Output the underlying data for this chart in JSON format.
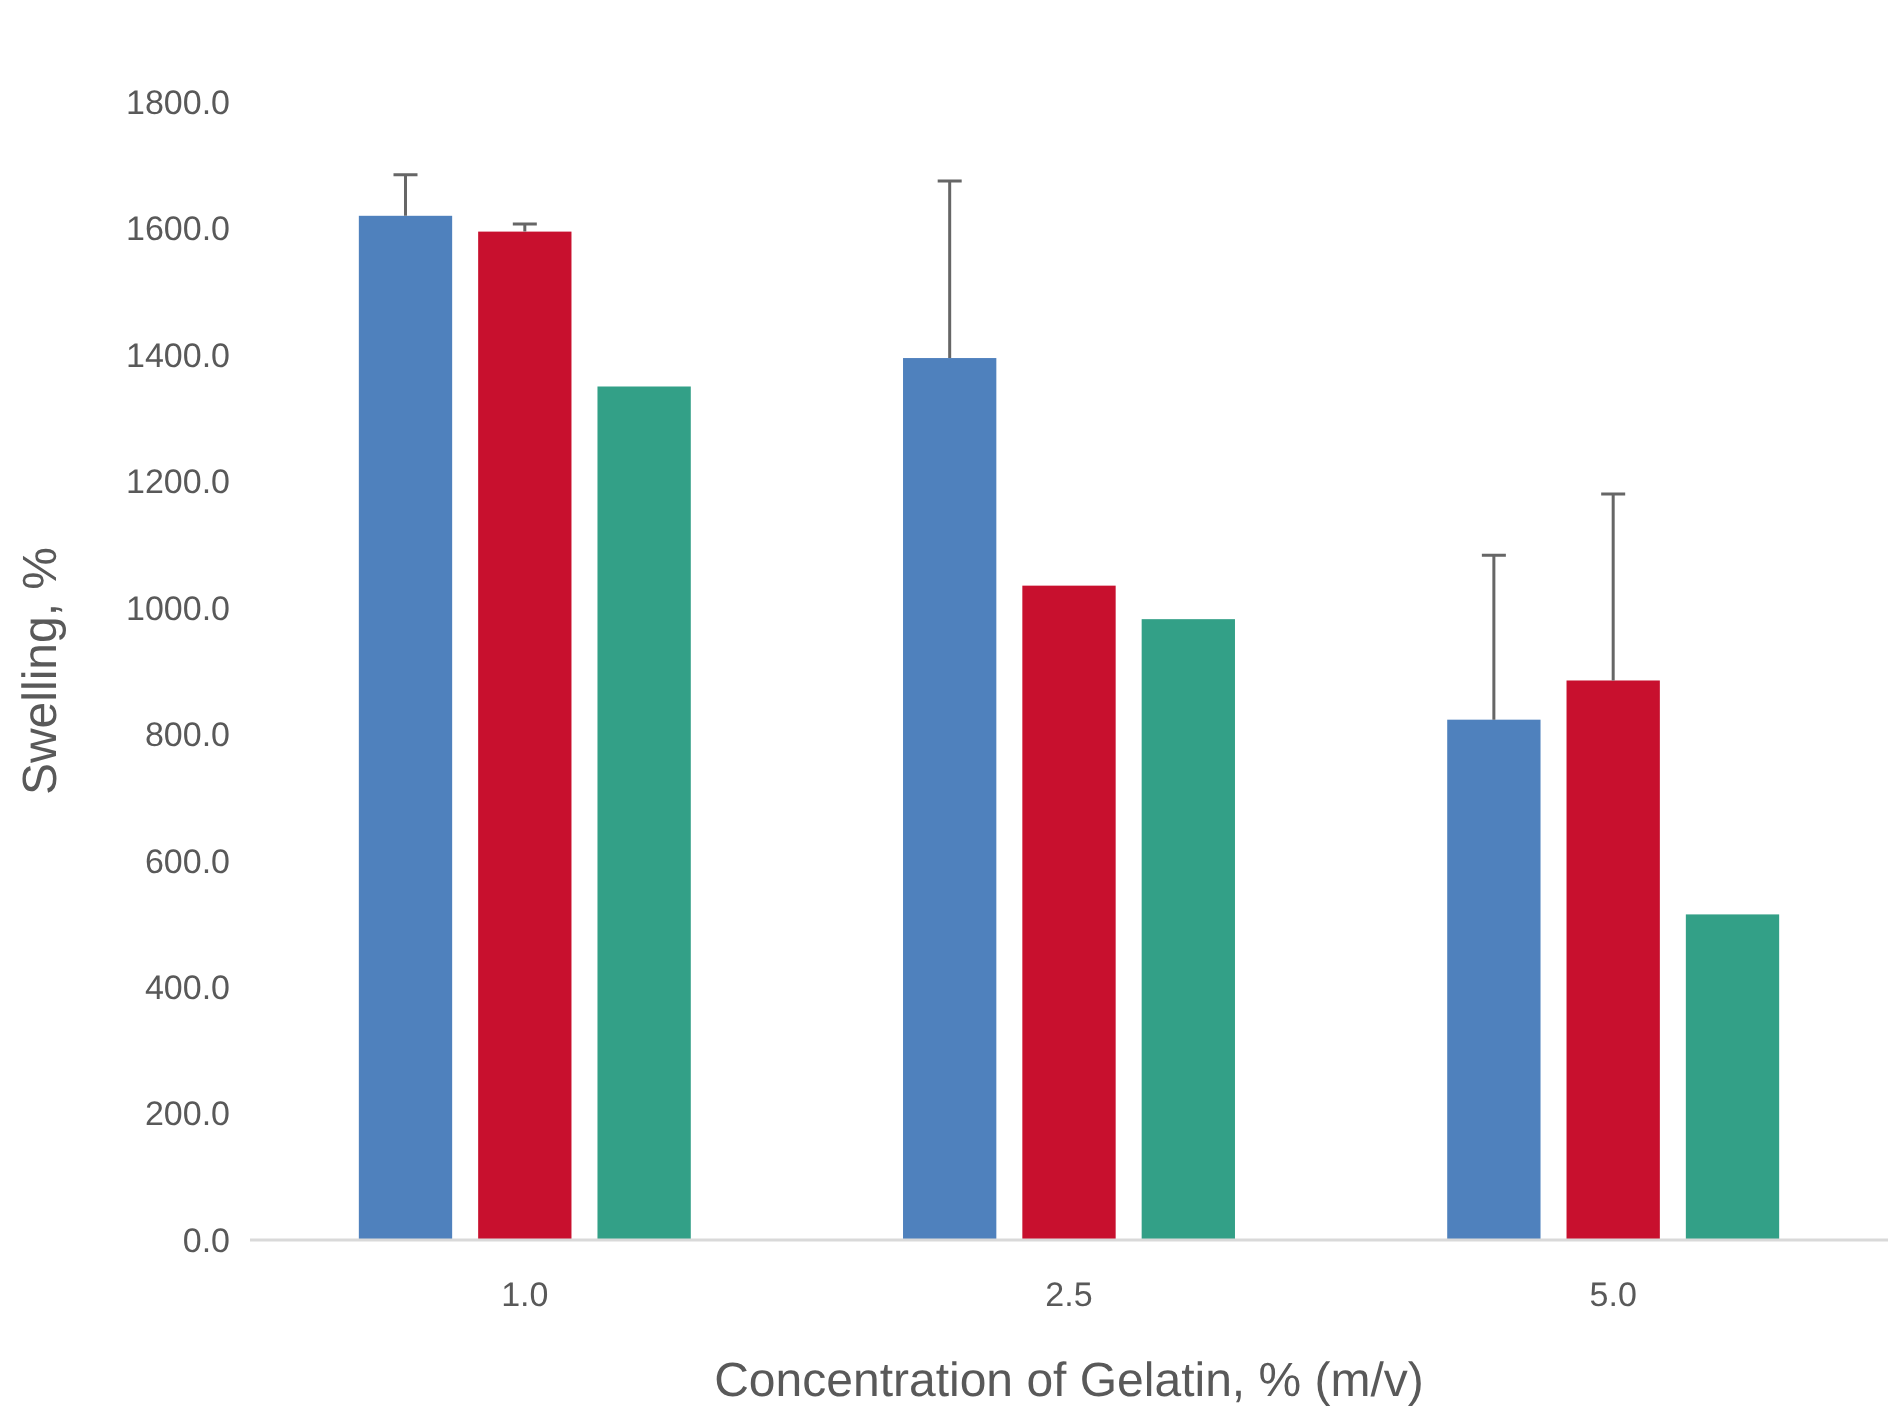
{
  "chart_data": {
    "type": "bar",
    "xlabel": "Concentration of Gelatin, % (m/v)",
    "ylabel": "Swelling, %",
    "categories": [
      "1.0",
      "2.5",
      "5.0"
    ],
    "series": [
      {
        "color": "#4f81bd",
        "values": [
          1620,
          1395,
          823
        ],
        "errors": [
          [
            1620,
            1685
          ],
          [
            1395,
            1675
          ],
          [
            823,
            1083
          ]
        ]
      },
      {
        "color": "#c8102e",
        "values": [
          1595,
          1035,
          885
        ],
        "errors": [
          [
            1595,
            1607
          ],
          null,
          [
            885,
            1180
          ]
        ]
      },
      {
        "color": "#33a087",
        "values": [
          1350,
          982,
          515
        ]
      }
    ],
    "ylim": [
      0,
      1800
    ],
    "yticks": [
      {
        "value": 0,
        "label": "0.0"
      },
      {
        "value": 200,
        "label": "200.0"
      },
      {
        "value": 400,
        "label": "400.0"
      },
      {
        "value": 600,
        "label": "600.0"
      },
      {
        "value": 800,
        "label": "800.0"
      },
      {
        "value": 1000,
        "label": "1000.0"
      },
      {
        "value": 1200,
        "label": "1200.0"
      },
      {
        "value": 1400,
        "label": "1400.0"
      },
      {
        "value": 1600,
        "label": "1600.0"
      },
      {
        "value": 1800,
        "label": "1800.0"
      }
    ],
    "grid": false
  }
}
